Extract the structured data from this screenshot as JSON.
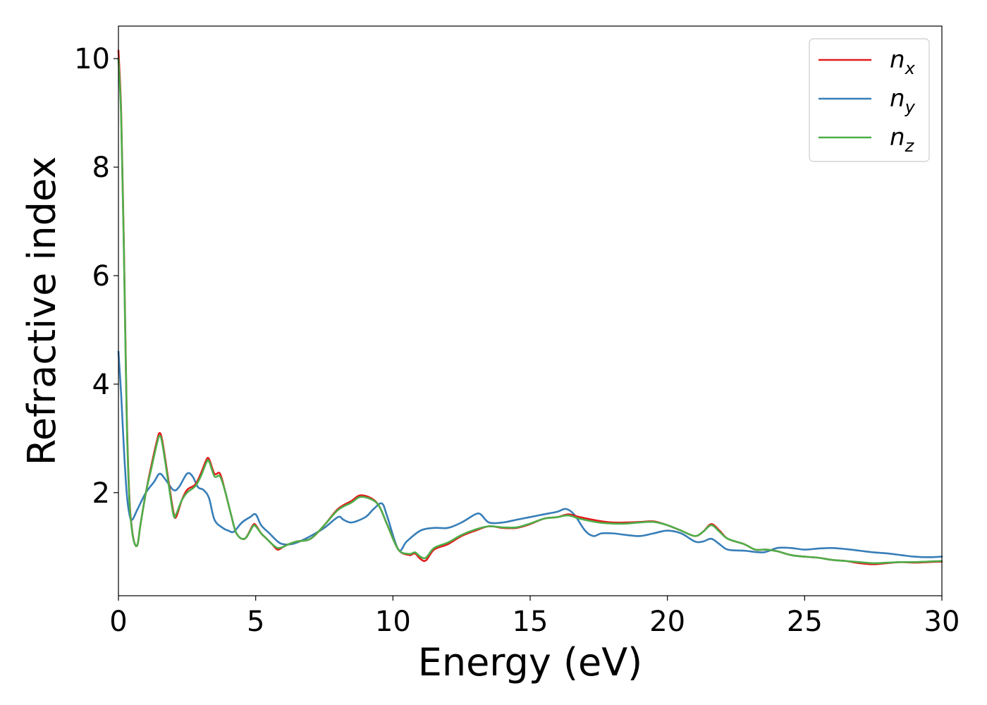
{
  "chart_data": {
    "type": "line",
    "title": "",
    "xlabel": "Energy (eV)",
    "ylabel": "Refractive index",
    "xlim": [
      0,
      30
    ],
    "ylim": [
      0.1,
      10.6
    ],
    "xticks": [
      0,
      5,
      10,
      15,
      20,
      25,
      30
    ],
    "yticks": [
      2,
      4,
      6,
      8,
      10
    ],
    "grid": false,
    "legend_position": "top-right",
    "series": [
      {
        "name": "n_x",
        "legend_base": "n",
        "legend_sub": "x",
        "color": "#e41a1c",
        "points": [
          [
            0,
            10.15
          ],
          [
            0.1,
            9.0
          ],
          [
            0.2,
            6.5
          ],
          [
            0.3,
            3.5
          ],
          [
            0.4,
            1.9
          ],
          [
            0.5,
            1.3
          ],
          [
            0.6,
            1.05
          ],
          [
            0.7,
            1.05
          ],
          [
            0.8,
            1.4
          ],
          [
            1.0,
            2.0
          ],
          [
            1.2,
            2.5
          ],
          [
            1.4,
            2.95
          ],
          [
            1.5,
            3.1
          ],
          [
            1.6,
            2.95
          ],
          [
            1.8,
            2.3
          ],
          [
            2.0,
            1.65
          ],
          [
            2.1,
            1.55
          ],
          [
            2.3,
            1.85
          ],
          [
            2.5,
            2.05
          ],
          [
            2.8,
            2.15
          ],
          [
            3.0,
            2.35
          ],
          [
            3.2,
            2.6
          ],
          [
            3.3,
            2.62
          ],
          [
            3.5,
            2.35
          ],
          [
            3.7,
            2.35
          ],
          [
            3.9,
            2.0
          ],
          [
            4.1,
            1.6
          ],
          [
            4.3,
            1.25
          ],
          [
            4.6,
            1.15
          ],
          [
            4.9,
            1.4
          ],
          [
            5.0,
            1.4
          ],
          [
            5.2,
            1.25
          ],
          [
            5.4,
            1.15
          ],
          [
            5.6,
            1.05
          ],
          [
            5.8,
            0.95
          ],
          [
            6.0,
            1.0
          ],
          [
            6.2,
            1.05
          ],
          [
            6.5,
            1.1
          ],
          [
            7.0,
            1.15
          ],
          [
            7.5,
            1.4
          ],
          [
            8.0,
            1.7
          ],
          [
            8.5,
            1.85
          ],
          [
            8.8,
            1.95
          ],
          [
            9.2,
            1.9
          ],
          [
            9.5,
            1.75
          ],
          [
            9.8,
            1.4
          ],
          [
            10.2,
            0.95
          ],
          [
            10.6,
            0.85
          ],
          [
            10.8,
            0.88
          ],
          [
            11.0,
            0.78
          ],
          [
            11.2,
            0.75
          ],
          [
            11.5,
            0.95
          ],
          [
            12.0,
            1.05
          ],
          [
            12.5,
            1.2
          ],
          [
            13.0,
            1.3
          ],
          [
            13.5,
            1.38
          ],
          [
            14.0,
            1.35
          ],
          [
            14.5,
            1.35
          ],
          [
            15.0,
            1.42
          ],
          [
            15.5,
            1.52
          ],
          [
            16.0,
            1.55
          ],
          [
            16.4,
            1.6
          ],
          [
            16.8,
            1.55
          ],
          [
            17.5,
            1.48
          ],
          [
            18.0,
            1.45
          ],
          [
            18.5,
            1.45
          ],
          [
            19.0,
            1.46
          ],
          [
            19.5,
            1.47
          ],
          [
            20.0,
            1.4
          ],
          [
            20.5,
            1.3
          ],
          [
            21.0,
            1.2
          ],
          [
            21.3,
            1.28
          ],
          [
            21.6,
            1.42
          ],
          [
            21.9,
            1.3
          ],
          [
            22.2,
            1.15
          ],
          [
            22.8,
            1.05
          ],
          [
            23.2,
            0.95
          ],
          [
            23.6,
            0.95
          ],
          [
            24.0,
            0.92
          ],
          [
            24.5,
            0.85
          ],
          [
            25.0,
            0.82
          ],
          [
            25.5,
            0.8
          ],
          [
            26.0,
            0.76
          ],
          [
            26.5,
            0.74
          ],
          [
            27.0,
            0.7
          ],
          [
            27.5,
            0.68
          ],
          [
            28.0,
            0.7
          ],
          [
            28.5,
            0.72
          ],
          [
            29.0,
            0.71
          ],
          [
            29.5,
            0.72
          ],
          [
            30.0,
            0.73
          ]
        ]
      },
      {
        "name": "n_y",
        "legend_base": "n",
        "legend_sub": "y",
        "color": "#377eb8",
        "points": [
          [
            0,
            4.6
          ],
          [
            0.1,
            3.8
          ],
          [
            0.2,
            2.8
          ],
          [
            0.3,
            2.0
          ],
          [
            0.4,
            1.6
          ],
          [
            0.5,
            1.5
          ],
          [
            0.7,
            1.7
          ],
          [
            1.0,
            2.0
          ],
          [
            1.3,
            2.2
          ],
          [
            1.5,
            2.35
          ],
          [
            1.7,
            2.25
          ],
          [
            2.0,
            2.05
          ],
          [
            2.2,
            2.1
          ],
          [
            2.5,
            2.35
          ],
          [
            2.7,
            2.3
          ],
          [
            2.9,
            2.1
          ],
          [
            3.1,
            2.05
          ],
          [
            3.3,
            1.9
          ],
          [
            3.5,
            1.5
          ],
          [
            3.8,
            1.35
          ],
          [
            4.0,
            1.3
          ],
          [
            4.2,
            1.28
          ],
          [
            4.5,
            1.45
          ],
          [
            4.8,
            1.55
          ],
          [
            5.0,
            1.6
          ],
          [
            5.2,
            1.4
          ],
          [
            5.5,
            1.25
          ],
          [
            5.8,
            1.1
          ],
          [
            6.0,
            1.05
          ],
          [
            6.3,
            1.05
          ],
          [
            6.6,
            1.1
          ],
          [
            7.0,
            1.2
          ],
          [
            7.5,
            1.35
          ],
          [
            8.0,
            1.55
          ],
          [
            8.2,
            1.5
          ],
          [
            8.5,
            1.45
          ],
          [
            9.0,
            1.55
          ],
          [
            9.3,
            1.7
          ],
          [
            9.6,
            1.8
          ],
          [
            9.8,
            1.55
          ],
          [
            10.2,
            0.95
          ],
          [
            10.5,
            1.1
          ],
          [
            11.0,
            1.3
          ],
          [
            11.5,
            1.35
          ],
          [
            12.0,
            1.35
          ],
          [
            12.5,
            1.45
          ],
          [
            13.0,
            1.6
          ],
          [
            13.2,
            1.6
          ],
          [
            13.5,
            1.45
          ],
          [
            14.0,
            1.45
          ],
          [
            14.5,
            1.5
          ],
          [
            15.0,
            1.55
          ],
          [
            15.5,
            1.6
          ],
          [
            16.0,
            1.65
          ],
          [
            16.3,
            1.7
          ],
          [
            16.6,
            1.6
          ],
          [
            17.0,
            1.3
          ],
          [
            17.3,
            1.2
          ],
          [
            17.6,
            1.25
          ],
          [
            18.0,
            1.25
          ],
          [
            18.5,
            1.22
          ],
          [
            19.0,
            1.2
          ],
          [
            19.5,
            1.25
          ],
          [
            20.0,
            1.3
          ],
          [
            20.5,
            1.25
          ],
          [
            21.0,
            1.1
          ],
          [
            21.3,
            1.1
          ],
          [
            21.6,
            1.15
          ],
          [
            21.9,
            1.05
          ],
          [
            22.2,
            0.95
          ],
          [
            22.8,
            0.93
          ],
          [
            23.5,
            0.9
          ],
          [
            24.0,
            0.98
          ],
          [
            24.5,
            0.98
          ],
          [
            25.0,
            0.95
          ],
          [
            25.5,
            0.97
          ],
          [
            26.0,
            0.98
          ],
          [
            26.5,
            0.96
          ],
          [
            27.0,
            0.93
          ],
          [
            27.5,
            0.9
          ],
          [
            28.0,
            0.88
          ],
          [
            28.5,
            0.85
          ],
          [
            29.0,
            0.82
          ],
          [
            29.5,
            0.81
          ],
          [
            30.0,
            0.82
          ]
        ]
      },
      {
        "name": "n_z",
        "legend_base": "n",
        "legend_sub": "z",
        "color": "#4daf4a",
        "points": [
          [
            0,
            10.0
          ],
          [
            0.1,
            8.9
          ],
          [
            0.2,
            6.4
          ],
          [
            0.3,
            3.4
          ],
          [
            0.4,
            1.85
          ],
          [
            0.5,
            1.28
          ],
          [
            0.6,
            1.05
          ],
          [
            0.7,
            1.05
          ],
          [
            0.8,
            1.4
          ],
          [
            1.0,
            2.0
          ],
          [
            1.2,
            2.45
          ],
          [
            1.4,
            2.9
          ],
          [
            1.5,
            3.05
          ],
          [
            1.6,
            2.9
          ],
          [
            1.8,
            2.25
          ],
          [
            2.0,
            1.6
          ],
          [
            2.1,
            1.6
          ],
          [
            2.3,
            1.85
          ],
          [
            2.5,
            2.0
          ],
          [
            2.8,
            2.12
          ],
          [
            3.0,
            2.3
          ],
          [
            3.2,
            2.55
          ],
          [
            3.3,
            2.58
          ],
          [
            3.5,
            2.3
          ],
          [
            3.7,
            2.3
          ],
          [
            3.9,
            2.0
          ],
          [
            4.1,
            1.6
          ],
          [
            4.3,
            1.25
          ],
          [
            4.6,
            1.15
          ],
          [
            4.9,
            1.38
          ],
          [
            5.0,
            1.38
          ],
          [
            5.2,
            1.25
          ],
          [
            5.4,
            1.15
          ],
          [
            5.6,
            1.05
          ],
          [
            5.8,
            0.98
          ],
          [
            6.0,
            1.0
          ],
          [
            6.2,
            1.05
          ],
          [
            6.5,
            1.1
          ],
          [
            7.0,
            1.15
          ],
          [
            7.5,
            1.4
          ],
          [
            8.0,
            1.68
          ],
          [
            8.5,
            1.82
          ],
          [
            8.8,
            1.92
          ],
          [
            9.2,
            1.88
          ],
          [
            9.5,
            1.75
          ],
          [
            9.8,
            1.4
          ],
          [
            10.2,
            0.95
          ],
          [
            10.6,
            0.87
          ],
          [
            10.8,
            0.9
          ],
          [
            11.0,
            0.82
          ],
          [
            11.2,
            0.8
          ],
          [
            11.5,
            0.98
          ],
          [
            12.0,
            1.08
          ],
          [
            12.5,
            1.22
          ],
          [
            13.0,
            1.32
          ],
          [
            13.5,
            1.38
          ],
          [
            14.0,
            1.36
          ],
          [
            14.5,
            1.36
          ],
          [
            15.0,
            1.43
          ],
          [
            15.5,
            1.52
          ],
          [
            16.0,
            1.55
          ],
          [
            16.4,
            1.58
          ],
          [
            16.8,
            1.52
          ],
          [
            17.5,
            1.45
          ],
          [
            18.0,
            1.43
          ],
          [
            18.5,
            1.43
          ],
          [
            19.0,
            1.45
          ],
          [
            19.5,
            1.46
          ],
          [
            20.0,
            1.4
          ],
          [
            20.5,
            1.3
          ],
          [
            21.0,
            1.2
          ],
          [
            21.3,
            1.28
          ],
          [
            21.6,
            1.4
          ],
          [
            21.9,
            1.28
          ],
          [
            22.2,
            1.15
          ],
          [
            22.8,
            1.05
          ],
          [
            23.2,
            0.95
          ],
          [
            23.6,
            0.95
          ],
          [
            24.0,
            0.92
          ],
          [
            24.5,
            0.85
          ],
          [
            25.0,
            0.82
          ],
          [
            25.5,
            0.8
          ],
          [
            26.0,
            0.76
          ],
          [
            26.5,
            0.74
          ],
          [
            27.0,
            0.72
          ],
          [
            27.5,
            0.7
          ],
          [
            28.0,
            0.71
          ],
          [
            28.5,
            0.72
          ],
          [
            29.0,
            0.72
          ],
          [
            29.5,
            0.73
          ],
          [
            30.0,
            0.74
          ]
        ]
      }
    ]
  }
}
